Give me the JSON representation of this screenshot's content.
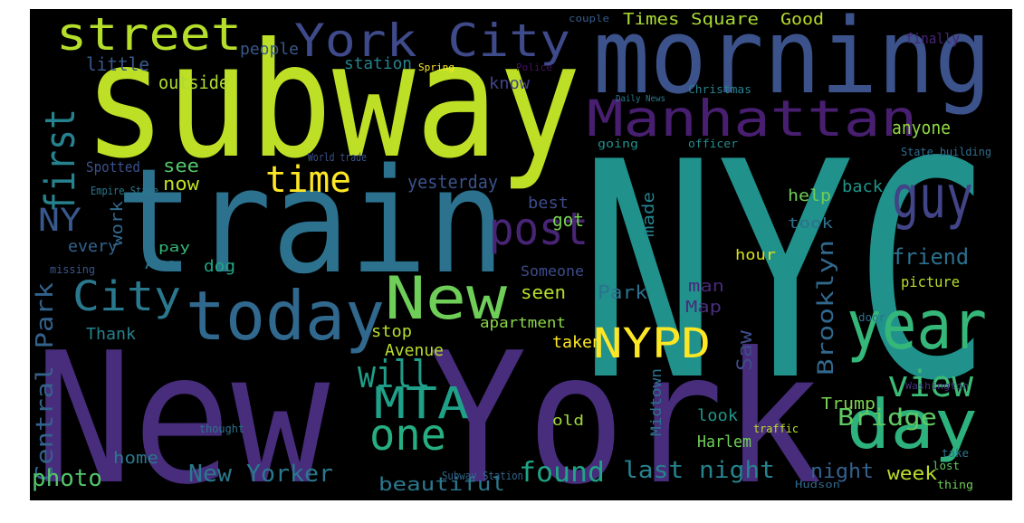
{
  "words": [
    "NYC",
    "subway",
    "train",
    "New York",
    "morning",
    "Manhattan",
    "York City",
    "street",
    "today",
    "New",
    "year",
    "day",
    "guy",
    "post",
    "time",
    "NYPD",
    "MTA",
    "will",
    "one",
    "view",
    "first",
    "City",
    "NY",
    "found",
    "New Yorker",
    "last night",
    "Central Park",
    "photo",
    "Brooklyn",
    "Bridge",
    "friend",
    "night",
    "week",
    "beautiful",
    "Times Square",
    "people",
    "outside",
    "station",
    "little",
    "yesterday",
    "anyone",
    "help",
    "back",
    "seen",
    "Park",
    "Map",
    "Saw",
    "made",
    "got",
    "took",
    "best",
    "know",
    "Spotted",
    "see",
    "now",
    "work",
    "every",
    "dog",
    "Ave",
    "pay",
    "Thank",
    "stop",
    "Avenue",
    "apartment",
    "Someone",
    "taken",
    "hour",
    "man",
    "look",
    "Harlem",
    "old",
    "home",
    "Trump",
    "Midtown",
    "picture",
    "Good",
    "finally",
    "Christmas",
    "officer",
    "State building",
    "going",
    "Subway Station",
    "World trade",
    "Empire State",
    "Police",
    "Spring",
    "couple",
    "Daily News",
    "missing",
    "thought",
    "traffic",
    "door",
    "Washington",
    "Hudson",
    "lost",
    "thing",
    "take"
  ]
}
